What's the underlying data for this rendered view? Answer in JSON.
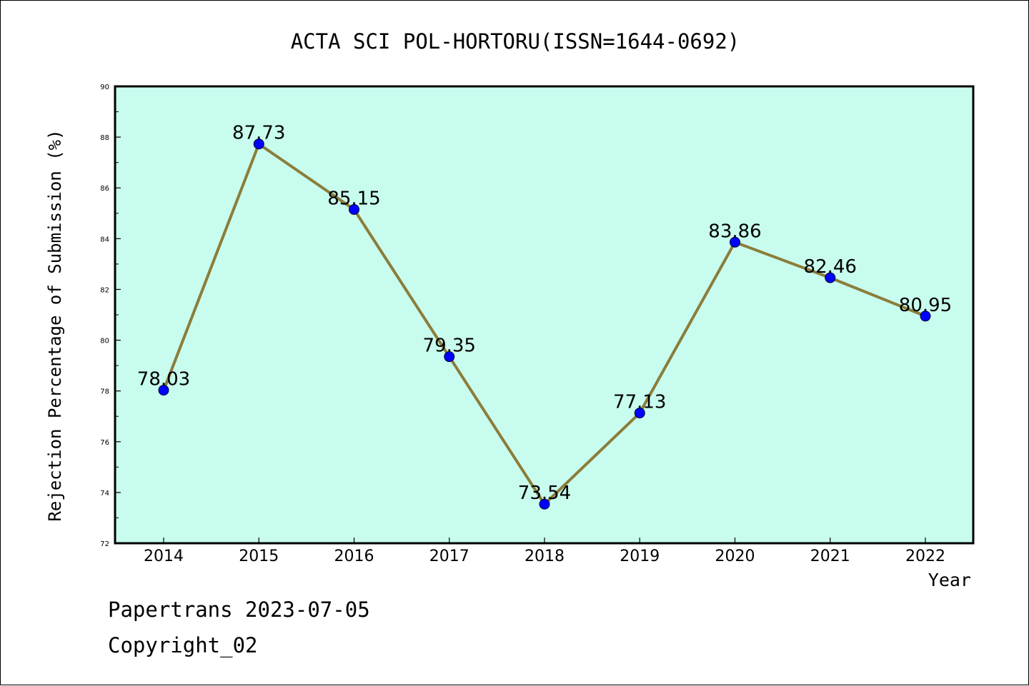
{
  "chart_data": {
    "type": "line",
    "title": "ACTA SCI POL-HORTORU(ISSN=1644-0692)",
    "xlabel": "Year",
    "ylabel": "Rejection Percentage of Submission (%)",
    "x": [
      "2014",
      "2015",
      "2016",
      "2017",
      "2018",
      "2019",
      "2020",
      "2021",
      "2022"
    ],
    "series": [
      {
        "values": [
          78.03,
          87.73,
          85.15,
          79.35,
          73.54,
          77.13,
          83.86,
          82.46,
          80.95
        ]
      }
    ],
    "data_labels": [
      "78.03",
      "87.73",
      "85.15",
      "79.35",
      "73.54",
      "77.13",
      "83.86",
      "82.46",
      "80.95"
    ],
    "ylim": [
      72,
      90
    ],
    "yticks": [
      72,
      74,
      76,
      78,
      80,
      82,
      84,
      86,
      88,
      90
    ],
    "ytick_labels": [
      "72",
      "74",
      "76",
      "78",
      "80",
      "82",
      "84",
      "86",
      "88",
      "90"
    ],
    "grid": false,
    "legend": "none",
    "colors": {
      "plot_background": "#c8fcee",
      "line": "#8b7d3a",
      "marker": "#0000ff"
    }
  },
  "footer": {
    "line1": "Papertrans 2023-07-05",
    "line2": "Copyright_02"
  }
}
